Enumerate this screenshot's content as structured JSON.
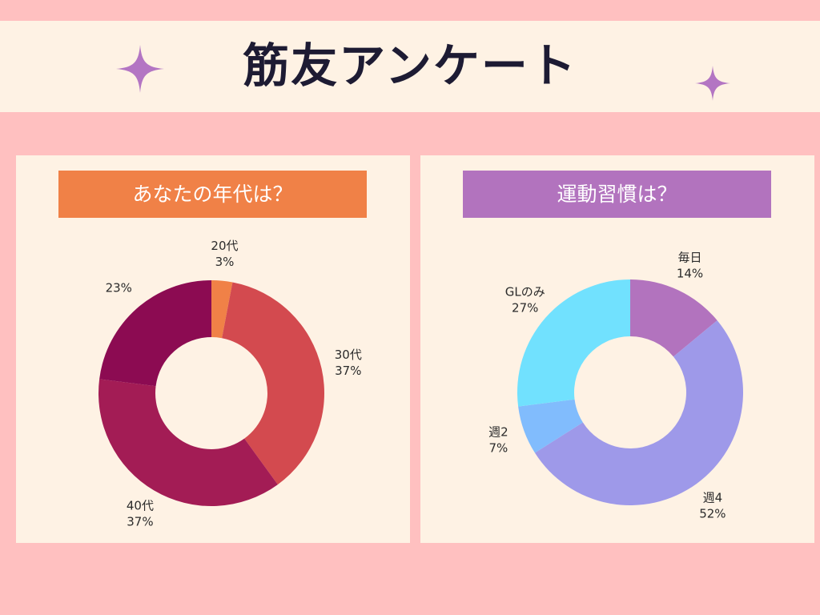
{
  "page": {
    "title": "筋友アンケート",
    "colors": {
      "background": "#ffc0c0",
      "card": "#fef2e4",
      "title_text": "#1d1b33",
      "sparkle": "#b375c3"
    }
  },
  "chart_data": [
    {
      "type": "pie",
      "variant": "donut",
      "title": "あなたの年代は？",
      "header_color": "#f08147",
      "slices": [
        {
          "name": "20代",
          "value": 3,
          "label": "3%",
          "color": "#f08147"
        },
        {
          "name": "30代",
          "value": 37,
          "label": "37%",
          "color": "#d34a4f"
        },
        {
          "name": "40代",
          "value": 37,
          "label": "37%",
          "color": "#a31c55"
        },
        {
          "name": "",
          "value": 23,
          "label": "23%",
          "color": "#8c0b52"
        }
      ]
    },
    {
      "type": "pie",
      "variant": "donut",
      "title": "運動習慣は？",
      "header_color": "#b273be",
      "slices": [
        {
          "name": "毎日",
          "value": 14,
          "label": "14%",
          "color": "#b273be"
        },
        {
          "name": "週4",
          "value": 52,
          "label": "52%",
          "color": "#9e99e9"
        },
        {
          "name": "週2",
          "value": 7,
          "label": "7%",
          "color": "#81bcfd"
        },
        {
          "name": "GLのみ",
          "value": 27,
          "label": "27%",
          "color": "#71e1fe"
        }
      ]
    }
  ]
}
